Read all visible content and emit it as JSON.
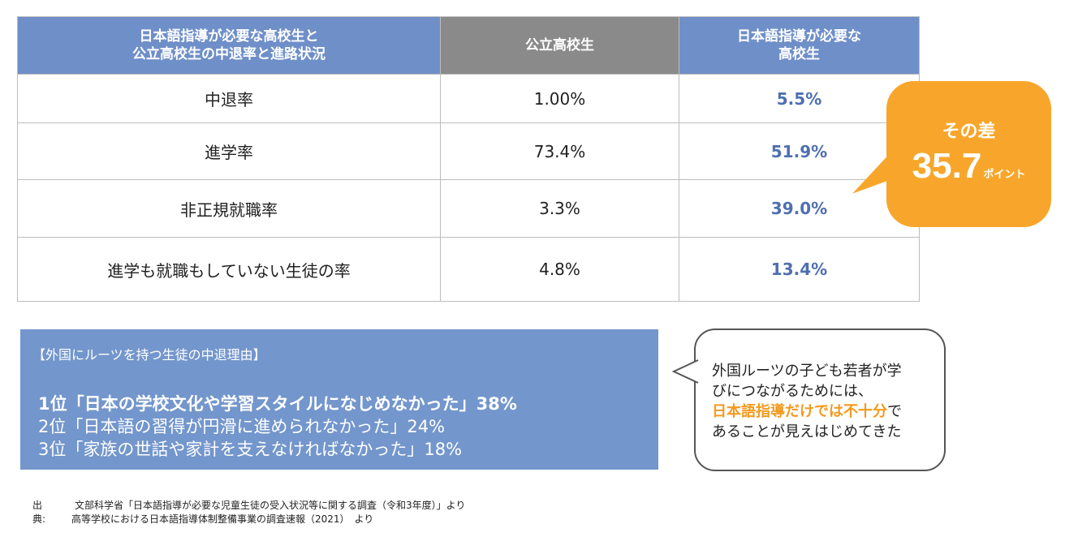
{
  "table": {
    "header": {
      "col1_line1": "日本語指導が必要な高校生と",
      "col1_line2": "公立高校生の中退率と進路状況",
      "col2": "公立高校生",
      "col3_line1": "日本語指導が必要な",
      "col3_line2": "高校生"
    },
    "rows": [
      {
        "label": "中退率",
        "public": "1.00%",
        "jsl": "5.5%"
      },
      {
        "label": "進学率",
        "public": "73.4%",
        "jsl": "51.9%"
      },
      {
        "label": "非正規就職率",
        "public": "3.3%",
        "jsl": "39.0%"
      },
      {
        "label": "進学も就職もしていない生徒の率",
        "public": "4.8%",
        "jsl": "13.4%"
      }
    ]
  },
  "callout": {
    "label": "その差",
    "value": "35.7",
    "unit": "ポイント"
  },
  "reasons": {
    "title": "【外国にルーツを持つ生徒の中退理由】",
    "items": [
      "1位「日本の学校文化や学習スタイルになじめなかった」38%",
      "2位「日本語の習得が円滑に進められなかった」24%",
      "3位「家族の世話や家計を支えなければなかった」18%"
    ]
  },
  "note": {
    "line1": "外国ルーツの子ども若者が学",
    "line2": "びにつながるためには、",
    "emphasis": "日本語指導だけでは不十分",
    "line3_suffix": "で",
    "line4": "あることが見えはじめてきた"
  },
  "source": {
    "label": "出典:",
    "line1": "文部科学省「日本語指導が必要な児童生徒の受入状況等に関する調査（令和3年度）」より",
    "line2": "高等学校における日本語指導体制整備事業の調査速報（2021）　より"
  },
  "colors": {
    "header_blue": "#6f8fc8",
    "header_gray": "#8a8a8a",
    "jsl_value_blue": "#4f6fb0",
    "callout_orange": "#f8a62b",
    "reasons_blue": "#7396cc",
    "emphasis_orange": "#f39a1e"
  }
}
